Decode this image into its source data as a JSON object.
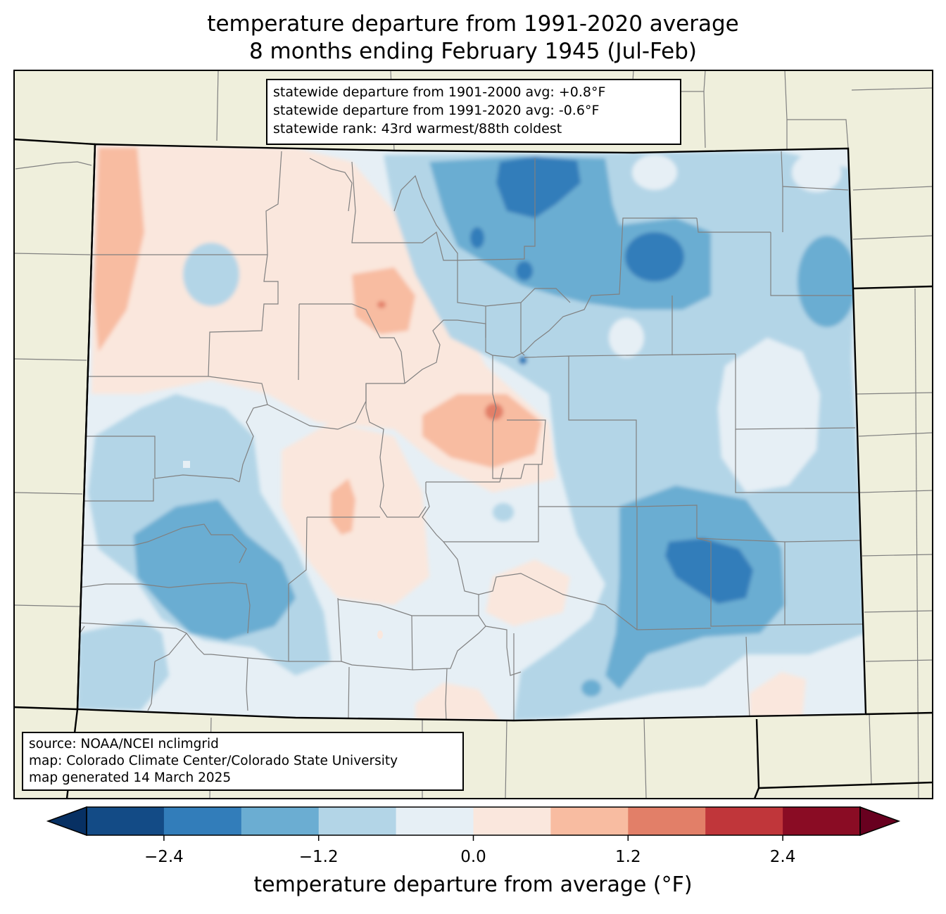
{
  "title_line1": "temperature departure from 1991-2020 average",
  "title_line2": "8 months ending February 1945 (Jul-Feb)",
  "stats": {
    "line1": "statewide departure from 1901-2000 avg: +0.8°F",
    "line2": "statewide departure from 1991-2020 avg: -0.6°F",
    "line3": "statewide rank: 43rd warmest/88th coldest"
  },
  "source": {
    "line1": "source: NOAA/NCEI nclimgrid",
    "line2": "map: Colorado Climate Center/Colorado State University",
    "line3": "map generated 14 March 2025"
  },
  "colorbar": {
    "label": "temperature departure from average (°F)",
    "ticks": [
      "−2.4",
      "−1.2",
      "0.0",
      "1.2",
      "2.4"
    ],
    "bins": [
      -3.0,
      -2.4,
      -1.8,
      -1.2,
      -0.6,
      0.0,
      0.6,
      1.2,
      1.8,
      2.4,
      3.0
    ],
    "colors": [
      "#134b86",
      "#327dba",
      "#6badd2",
      "#b3d5e7",
      "#e6eff5",
      "#fae7dd",
      "#f8bca1",
      "#e27f68",
      "#c0363a",
      "#8a0c24"
    ],
    "under_color": "#073063",
    "over_color": "#68001f"
  },
  "palette": {
    "land": "#efefdc",
    "county_line": "#808080",
    "state_line": "#000000"
  }
}
